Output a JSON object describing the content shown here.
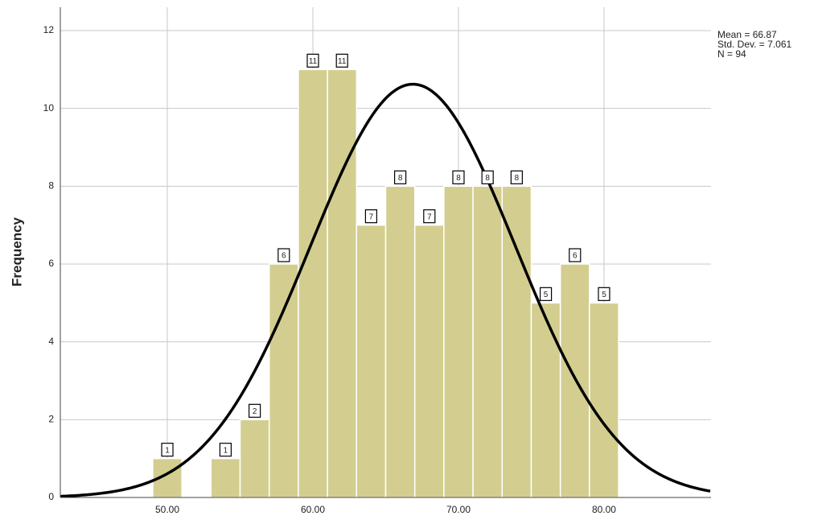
{
  "chart_data": {
    "type": "histogram",
    "y_label": "Frequency",
    "bins": [
      49,
      51,
      53,
      55,
      57,
      59,
      61,
      63,
      65,
      67,
      69,
      71,
      73,
      75,
      77,
      79,
      81
    ],
    "values": [
      1,
      0,
      1,
      2,
      6,
      11,
      11,
      7,
      8,
      7,
      8,
      8,
      8,
      5,
      6,
      5
    ],
    "color": "#d3ce8f",
    "curve_color": "#000000",
    "xlim": [
      42.65,
      87.35
    ],
    "xticks": [
      {
        "value": 50,
        "label": "50.00"
      },
      {
        "value": 60,
        "label": "60.00"
      },
      {
        "value": 70,
        "label": "70.00"
      },
      {
        "value": 80,
        "label": "80.00"
      }
    ],
    "ylim": [
      0,
      12.6
    ],
    "yticks": [
      0,
      2,
      4,
      6,
      8,
      10,
      12
    ],
    "grid": true,
    "stats": [
      {
        "value": 66.87,
        "label": "Mean = 66.87"
      },
      {
        "value": 7.061,
        "label": "Std. Dev. = 7.061"
      },
      {
        "value": 94,
        "label": "N = 94"
      }
    ]
  }
}
